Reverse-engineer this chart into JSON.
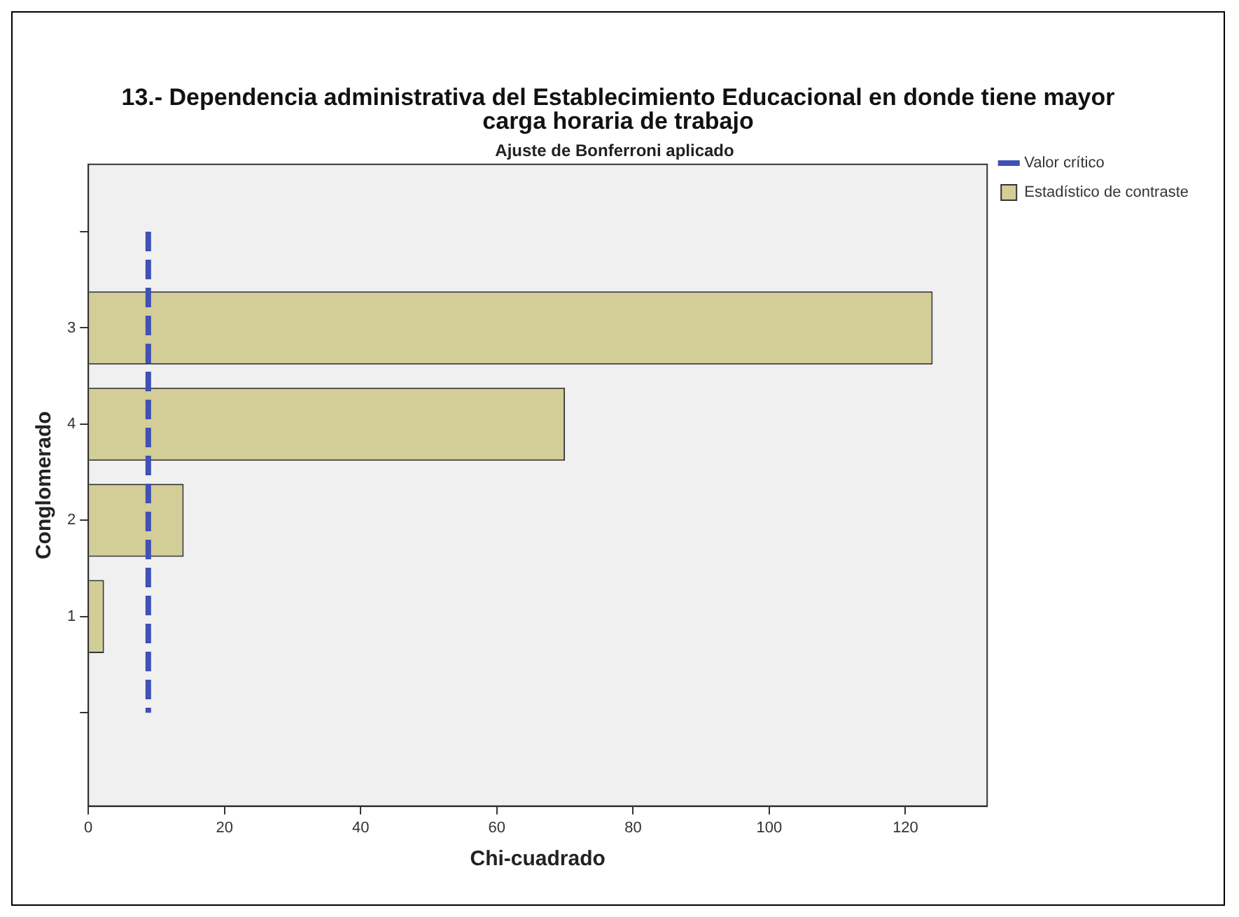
{
  "chart_data": {
    "type": "bar",
    "orientation": "horizontal",
    "title": "13.- Dependencia administrativa del Establecimiento Educacional en donde tiene mayor carga horaria de trabajo",
    "subtitle": "Ajuste de Bonferroni aplicado",
    "xlabel": "Chi-cuadrado",
    "ylabel": "Conglomerado",
    "categories": [
      null,
      "3",
      "4",
      "2",
      "1",
      null
    ],
    "series": [
      {
        "name": "Estadístico de contraste",
        "color": "#d3cd97",
        "values": [
          null,
          124,
          70,
          14,
          2.3,
          null
        ]
      }
    ],
    "xlim": [
      0,
      132
    ],
    "xticks": [
      0,
      20,
      40,
      60,
      80,
      100,
      120
    ],
    "ref_lines": [
      {
        "axis": "x",
        "value": 8.8,
        "label": "Valor crítico",
        "color": "#3f51b5",
        "line_style": "dashed"
      }
    ],
    "legend": "top right"
  }
}
